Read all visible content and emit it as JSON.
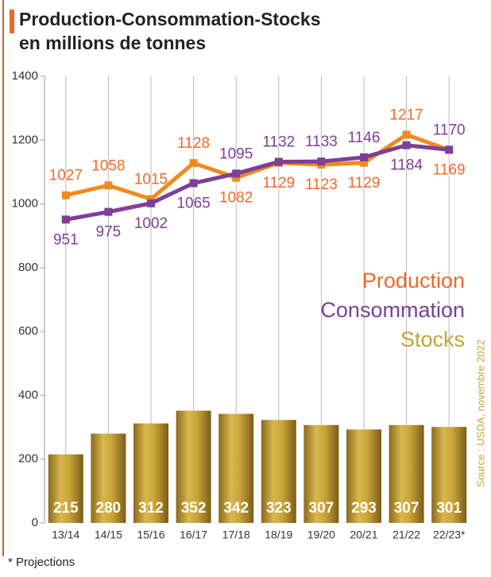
{
  "chart_data": {
    "type": "combo",
    "title": "Production-Consommation-Stocks",
    "subtitle": "en millions de tonnes",
    "categories": [
      "13/14",
      "14/15",
      "15/16",
      "16/17",
      "17/18",
      "18/19",
      "19/20",
      "20/21",
      "21/22",
      "22/23*"
    ],
    "series": [
      {
        "name": "Production",
        "type": "line",
        "color": "#f08a1e",
        "label_color": "#ef6a2a",
        "values": [
          1027,
          1058,
          1015,
          1128,
          1082,
          1129,
          1123,
          1129,
          1217,
          1169
        ]
      },
      {
        "name": "Consommation",
        "type": "line",
        "color": "#7d3f98",
        "label_color": "#7d3f98",
        "values": [
          951,
          975,
          1002,
          1065,
          1095,
          1132,
          1133,
          1146,
          1184,
          1170
        ]
      },
      {
        "name": "Stocks",
        "type": "bar",
        "color": "#c9a43a",
        "label_color": "#c2a538",
        "values": [
          215,
          280,
          312,
          352,
          342,
          323,
          307,
          293,
          307,
          301
        ]
      }
    ],
    "ylim": [
      0,
      1400
    ],
    "yticks": [
      0,
      200,
      400,
      600,
      800,
      1000,
      1200,
      1400
    ],
    "grid": "x",
    "source": "Source : USDA, novembre 2022",
    "note": "* Projections"
  }
}
